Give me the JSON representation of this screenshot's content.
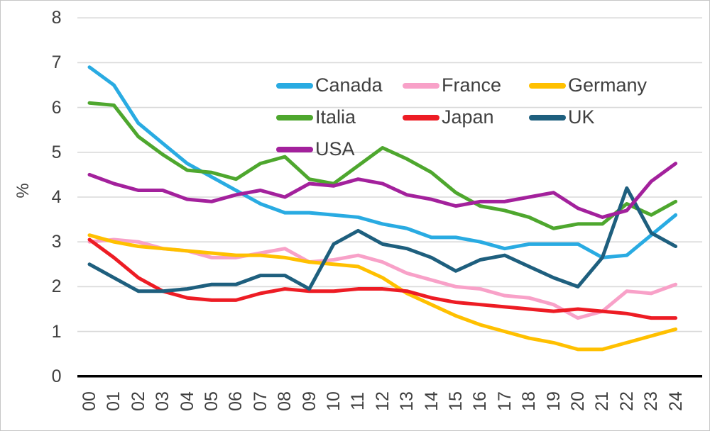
{
  "chart_data": {
    "type": "line",
    "title": "",
    "xlabel": "",
    "ylabel": "%",
    "ylim": [
      0,
      8
    ],
    "yticks": [
      "0",
      "1",
      "2",
      "3",
      "4",
      "5",
      "6",
      "7",
      "8"
    ],
    "grid": true,
    "legend_position": "inside-top",
    "x_labels": [
      "00",
      "01",
      "02",
      "03",
      "04",
      "05",
      "06",
      "07",
      "08",
      "09",
      "10",
      "11",
      "12",
      "13",
      "14",
      "15",
      "16",
      "17",
      "18",
      "19",
      "20",
      "21",
      "22",
      "23",
      "24"
    ],
    "series": [
      {
        "name": "Canada",
        "color": "#29ABE2",
        "values": [
          6.9,
          6.5,
          5.65,
          5.2,
          4.75,
          4.45,
          4.15,
          3.85,
          3.65,
          3.65,
          3.6,
          3.55,
          3.4,
          3.3,
          3.1,
          3.1,
          3.0,
          2.85,
          2.95,
          2.95,
          2.95,
          2.65,
          2.7,
          3.15,
          3.6
        ]
      },
      {
        "name": "France",
        "color": "#F8A1C8",
        "values": [
          3.0,
          3.05,
          3.0,
          2.85,
          2.8,
          2.65,
          2.65,
          2.75,
          2.85,
          2.55,
          2.6,
          2.7,
          2.55,
          2.3,
          2.15,
          2.0,
          1.95,
          1.8,
          1.75,
          1.6,
          1.3,
          1.45,
          1.9,
          1.85,
          2.05
        ]
      },
      {
        "name": "Germany",
        "color": "#FFC000",
        "values": [
          3.15,
          3.0,
          2.9,
          2.85,
          2.8,
          2.75,
          2.7,
          2.7,
          2.65,
          2.55,
          2.5,
          2.45,
          2.2,
          1.85,
          1.6,
          1.35,
          1.15,
          1.0,
          0.85,
          0.75,
          0.6,
          0.6,
          0.75,
          0.9,
          1.05
        ]
      },
      {
        "name": "Italia",
        "color": "#4EA72E",
        "values": [
          6.1,
          6.05,
          5.35,
          4.95,
          4.6,
          4.55,
          4.4,
          4.75,
          4.9,
          4.4,
          4.3,
          4.7,
          5.1,
          4.85,
          4.55,
          4.1,
          3.8,
          3.7,
          3.55,
          3.3,
          3.4,
          3.4,
          3.85,
          3.6,
          3.9
        ]
      },
      {
        "name": "Japan",
        "color": "#ED1C24",
        "values": [
          3.05,
          2.65,
          2.2,
          1.9,
          1.75,
          1.7,
          1.7,
          1.85,
          1.95,
          1.9,
          1.9,
          1.95,
          1.95,
          1.9,
          1.75,
          1.65,
          1.6,
          1.55,
          1.5,
          1.45,
          1.5,
          1.45,
          1.4,
          1.3,
          1.3
        ]
      },
      {
        "name": "UK",
        "color": "#1E5F7E",
        "values": [
          2.5,
          2.2,
          1.9,
          1.9,
          1.95,
          2.05,
          2.05,
          2.25,
          2.25,
          1.95,
          2.95,
          3.25,
          2.95,
          2.85,
          2.65,
          2.35,
          2.6,
          2.7,
          2.45,
          2.2,
          2.0,
          2.65,
          4.2,
          3.2,
          2.9
        ]
      },
      {
        "name": "USA",
        "color": "#A3219C",
        "values": [
          4.5,
          4.3,
          4.15,
          4.15,
          3.95,
          3.9,
          4.05,
          4.15,
          4.0,
          4.3,
          4.25,
          4.4,
          4.3,
          4.05,
          3.95,
          3.8,
          3.9,
          3.9,
          4.0,
          4.1,
          3.75,
          3.55,
          3.7,
          4.35,
          4.75
        ]
      }
    ],
    "style": {
      "gridline_color": "#D9D9D9",
      "axis_color": "#000000",
      "tick_text_color": "#3f3f3f"
    }
  }
}
